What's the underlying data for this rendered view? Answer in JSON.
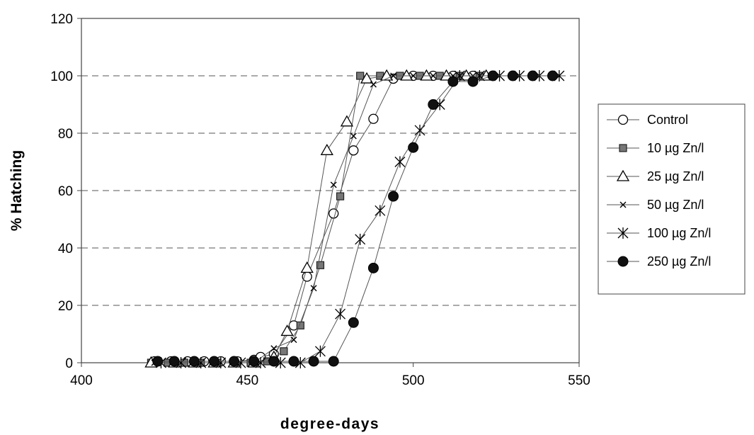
{
  "chart_data": {
    "type": "scatter",
    "title": "",
    "xlabel": "degree-days",
    "ylabel": "% Hatching",
    "xlim": [
      400,
      550
    ],
    "ylim": [
      0,
      120
    ],
    "x_ticks": [
      "400",
      "450",
      "500",
      "550"
    ],
    "y_ticks": [
      "0",
      "20",
      "40",
      "60",
      "80",
      "100",
      "120"
    ],
    "grid": "horizontal dashed",
    "legend_position": "right",
    "series": [
      {
        "name": "Control",
        "marker": "open-circle",
        "points": [
          [
            422,
            0.5
          ],
          [
            427,
            0.5
          ],
          [
            432,
            0.5
          ],
          [
            437,
            0.5
          ],
          [
            442,
            0.5
          ],
          [
            447,
            0.5
          ],
          [
            452,
            1
          ],
          [
            454,
            2
          ],
          [
            458,
            3
          ],
          [
            464,
            13
          ],
          [
            468,
            30
          ],
          [
            476,
            52
          ],
          [
            482,
            74
          ],
          [
            488,
            85
          ],
          [
            494,
            99
          ],
          [
            500,
            100
          ],
          [
            506,
            100
          ],
          [
            512,
            100
          ],
          [
            518,
            100
          ],
          [
            524,
            100
          ]
        ]
      },
      {
        "name": "10 µg Zn/l",
        "marker": "filled-square",
        "points": [
          [
            421,
            0
          ],
          [
            426,
            0
          ],
          [
            431,
            0
          ],
          [
            436,
            0
          ],
          [
            441,
            0
          ],
          [
            446,
            0
          ],
          [
            451,
            0
          ],
          [
            456,
            0.5
          ],
          [
            461,
            4
          ],
          [
            466,
            13
          ],
          [
            472,
            34
          ],
          [
            478,
            58
          ],
          [
            484,
            100
          ],
          [
            490,
            100
          ],
          [
            496,
            100
          ],
          [
            502,
            100
          ],
          [
            508,
            100
          ],
          [
            514,
            100
          ],
          [
            520,
            100
          ]
        ]
      },
      {
        "name": "25 µg Zn/l",
        "marker": "open-triangle",
        "points": [
          [
            421,
            0
          ],
          [
            428,
            0
          ],
          [
            434,
            0
          ],
          [
            440,
            0
          ],
          [
            446,
            0
          ],
          [
            452,
            0
          ],
          [
            458,
            2
          ],
          [
            462,
            11
          ],
          [
            468,
            33
          ],
          [
            474,
            74
          ],
          [
            480,
            84
          ],
          [
            486,
            99
          ],
          [
            492,
            100
          ],
          [
            498,
            100
          ],
          [
            504,
            100
          ],
          [
            510,
            100
          ],
          [
            516,
            100
          ],
          [
            522,
            100
          ]
        ]
      },
      {
        "name": "50 µg Zn/l",
        "marker": "x-cross",
        "points": [
          [
            422,
            0
          ],
          [
            428,
            0
          ],
          [
            434,
            0
          ],
          [
            440,
            0
          ],
          [
            446,
            0
          ],
          [
            452,
            0
          ],
          [
            458,
            5
          ],
          [
            464,
            8
          ],
          [
            470,
            26
          ],
          [
            476,
            62
          ],
          [
            482,
            79
          ],
          [
            488,
            97
          ],
          [
            494,
            100
          ],
          [
            500,
            100
          ],
          [
            506,
            100
          ],
          [
            512,
            100
          ],
          [
            518,
            100
          ],
          [
            524,
            100
          ]
        ]
      },
      {
        "name": "100 µg Zn/l",
        "marker": "asterisk",
        "points": [
          [
            424,
            0
          ],
          [
            430,
            0
          ],
          [
            436,
            0
          ],
          [
            442,
            0
          ],
          [
            448,
            0
          ],
          [
            454,
            0
          ],
          [
            460,
            0
          ],
          [
            466,
            0
          ],
          [
            472,
            4
          ],
          [
            478,
            17
          ],
          [
            484,
            43
          ],
          [
            490,
            53
          ],
          [
            496,
            70
          ],
          [
            502,
            81
          ],
          [
            508,
            90
          ],
          [
            514,
            100
          ],
          [
            520,
            100
          ],
          [
            526,
            100
          ],
          [
            532,
            100
          ],
          [
            538,
            100
          ],
          [
            544,
            100
          ]
        ]
      },
      {
        "name": "250 µg Zn/l",
        "marker": "filled-circle",
        "points": [
          [
            423,
            0.5
          ],
          [
            428,
            0.5
          ],
          [
            434,
            0.5
          ],
          [
            440,
            0.5
          ],
          [
            446,
            0.5
          ],
          [
            452,
            0.5
          ],
          [
            458,
            0.5
          ],
          [
            464,
            0.5
          ],
          [
            470,
            0.5
          ],
          [
            476,
            0.5
          ],
          [
            482,
            14
          ],
          [
            488,
            33
          ],
          [
            494,
            58
          ],
          [
            500,
            75
          ],
          [
            506,
            90
          ],
          [
            512,
            98
          ],
          [
            518,
            98
          ],
          [
            524,
            100
          ],
          [
            530,
            100
          ],
          [
            536,
            100
          ],
          [
            542,
            100
          ]
        ]
      }
    ]
  }
}
